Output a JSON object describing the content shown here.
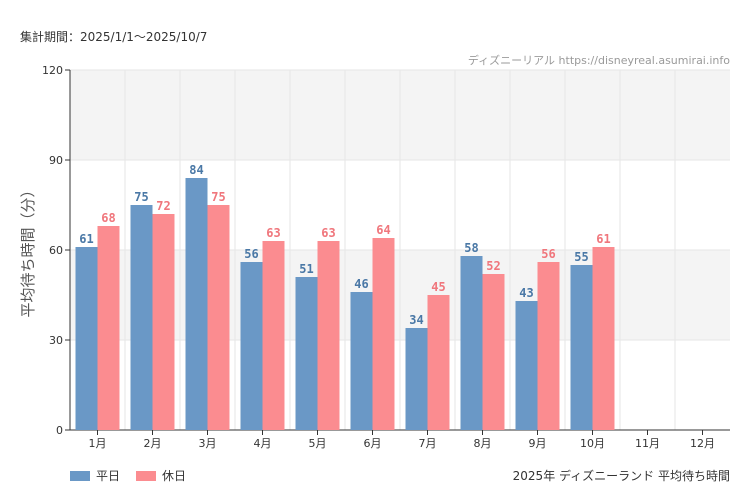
{
  "header": {
    "period": "集計期間：2025/1/1〜2025/10/7",
    "source": "ディズニーリアル https://disneyreal.asumirai.info"
  },
  "footer": {
    "title": "2025年 ディズニーランド 平均待ち時間"
  },
  "colors": {
    "weekday": "#6a98c6",
    "holiday": "#fb8c90",
    "weekday_label": "#4a78a6",
    "holiday_label": "#f0767c",
    "band": "#f4f4f4"
  },
  "chart_data": {
    "type": "bar",
    "ylabel": "平均待ち時間（分）",
    "ylim": [
      0,
      120
    ],
    "yticks": [
      "0",
      "30",
      "60",
      "90",
      "120"
    ],
    "categories": [
      "1月",
      "2月",
      "3月",
      "4月",
      "5月",
      "6月",
      "7月",
      "8月",
      "9月",
      "10月",
      "11月",
      "12月"
    ],
    "series": [
      {
        "name": "平日",
        "values": [
          61,
          75,
          84,
          56,
          51,
          46,
          34,
          58,
          43,
          55,
          null,
          null
        ]
      },
      {
        "name": "休日",
        "values": [
          68,
          72,
          75,
          63,
          63,
          64,
          45,
          52,
          56,
          61,
          null,
          null
        ]
      }
    ],
    "grid": true,
    "legend": "bottom-left"
  }
}
